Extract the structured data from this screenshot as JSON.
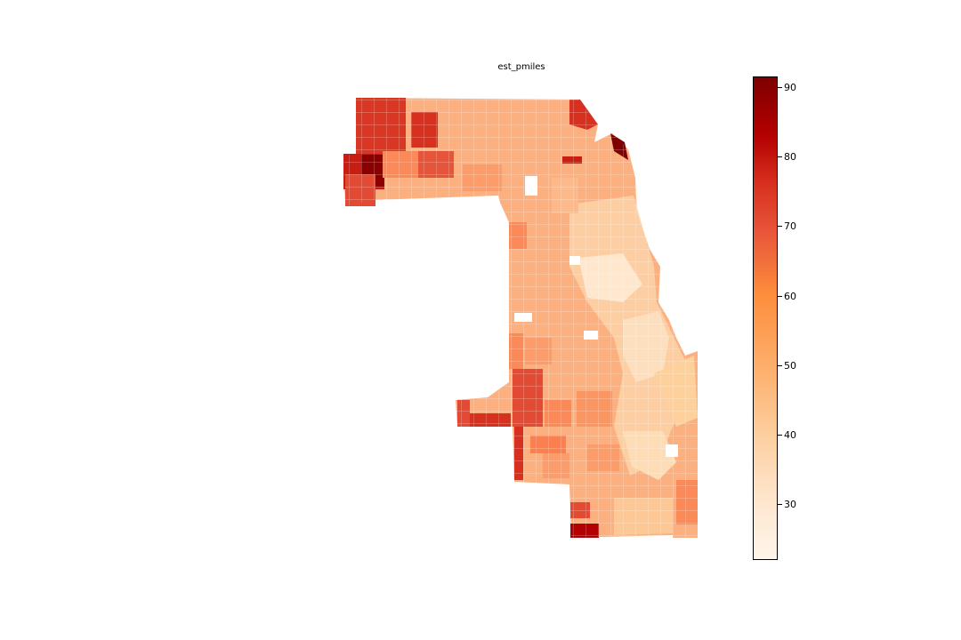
{
  "title": "est_pmiles",
  "colorbar": {
    "colormap": "OrRd",
    "min": 22,
    "max": 91.5,
    "ticks": [
      "30",
      "40",
      "50",
      "60",
      "70",
      "80",
      "90"
    ],
    "tick_values": [
      30,
      40,
      50,
      60,
      70,
      80,
      90
    ]
  },
  "legend_placement": "right",
  "colors": {
    "low": "#fff5eb",
    "mid": "#fdae6b",
    "high": "#d7301f",
    "max": "#7f0000"
  }
}
